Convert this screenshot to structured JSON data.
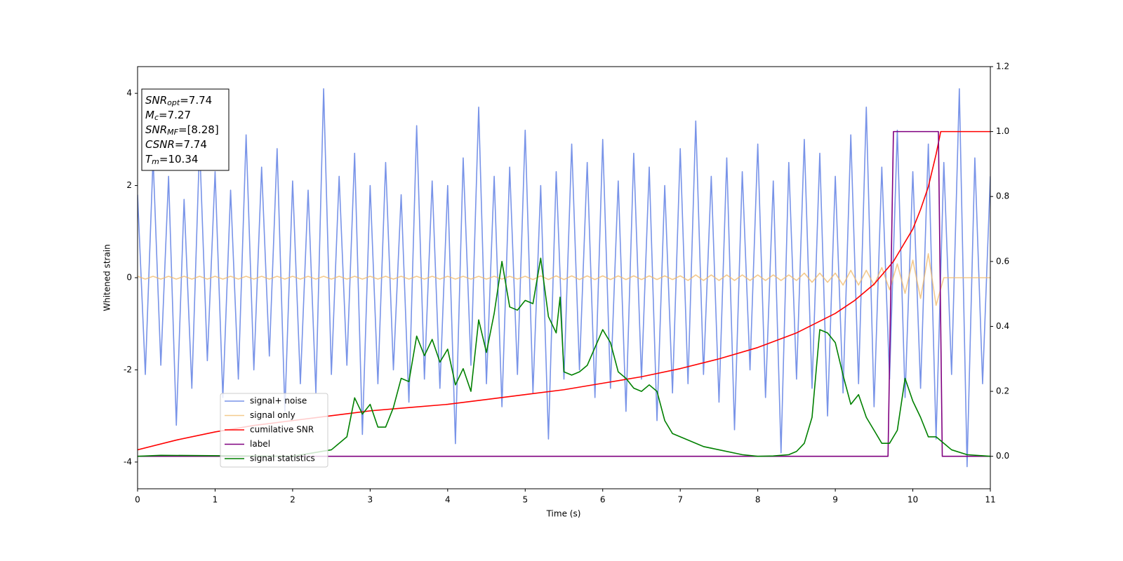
{
  "chart_data": {
    "type": "line",
    "xlabel": "Time (s)",
    "ylabel": "Whitened strain",
    "xlim": [
      0,
      11
    ],
    "xticks": [
      0,
      1,
      2,
      3,
      4,
      5,
      6,
      7,
      8,
      9,
      10,
      11
    ],
    "ylim": [
      -4.58,
      4.58
    ],
    "yticks": [
      -4,
      -2,
      0,
      2,
      4
    ],
    "y2lim": [
      -0.1,
      1.2
    ],
    "y2ticks": [
      {
        "value": 0,
        "label": "0.0"
      },
      0.2,
      0.4,
      0.6,
      0.8,
      {
        "value": 1,
        "label": "1.0"
      },
      1.2
    ],
    "annotations": [
      {
        "main": "SNR",
        "sub": "opt",
        "rest": "=7.74"
      },
      {
        "main": "M",
        "sub": "c",
        "rest": "=7.27"
      },
      {
        "main": "SNR",
        "sub": "MF",
        "rest": "=[8.28]"
      },
      {
        "main": "CSNR",
        "rest": "=7.74"
      },
      {
        "main": "T",
        "sub": "m",
        "rest": "=10.34"
      }
    ],
    "x": [
      0,
      0.1,
      0.2,
      0.3,
      0.4,
      0.5,
      0.6,
      0.7,
      0.8,
      0.9,
      1,
      1.1,
      1.2,
      1.3,
      1.4,
      1.5,
      1.6,
      1.7,
      1.8,
      1.9,
      2,
      2.1,
      2.2,
      2.3,
      2.4,
      2.5,
      2.6,
      2.7,
      2.8,
      2.9,
      3,
      3.1,
      3.2,
      3.3,
      3.4,
      3.5,
      3.6,
      3.7,
      3.8,
      3.9,
      4,
      4.1,
      4.2,
      4.3,
      4.4,
      4.5,
      4.6,
      4.7,
      4.8,
      4.9,
      5,
      5.1,
      5.2,
      5.3,
      5.4,
      5.5,
      5.6,
      5.7,
      5.8,
      5.9,
      6,
      6.1,
      6.2,
      6.3,
      6.4,
      6.5,
      6.6,
      6.7,
      6.8,
      6.9,
      7,
      7.1,
      7.2,
      7.3,
      7.4,
      7.5,
      7.6,
      7.7,
      7.8,
      7.9,
      8,
      8.1,
      8.2,
      8.3,
      8.4,
      8.5,
      8.6,
      8.7,
      8.8,
      8.9,
      9,
      9.1,
      9.2,
      9.3,
      9.4,
      9.5,
      9.6,
      9.7,
      9.8,
      9.9,
      10,
      10.1,
      10.2,
      10.3,
      10.4,
      10.5,
      10.6,
      10.7,
      10.8,
      10.9,
      11
    ],
    "series": [
      {
        "name": "signal+ noise",
        "color": "#7893e8",
        "values": [
          1.8,
          -2.1,
          2.6,
          -1.9,
          2.2,
          -3.2,
          1.7,
          -2.4,
          2.9,
          -1.8,
          2.3,
          -2.6,
          1.9,
          -2.2,
          3.1,
          -2.0,
          2.4,
          -1.7,
          2.8,
          -2.9,
          2.1,
          -2.3,
          1.9,
          -2.5,
          4.1,
          -2.1,
          2.2,
          -1.9,
          2.7,
          -3.4,
          2.0,
          -2.3,
          2.5,
          -2.0,
          1.8,
          -2.7,
          3.3,
          -2.2,
          2.1,
          -2.4,
          2.0,
          -3.6,
          2.6,
          -1.9,
          3.7,
          -2.3,
          2.2,
          -2.8,
          2.4,
          -2.1,
          3.2,
          -2.5,
          2.0,
          -3.5,
          2.3,
          -2.2,
          2.9,
          -2.0,
          2.5,
          -2.6,
          3.0,
          -2.4,
          2.1,
          -2.9,
          2.7,
          -2.2,
          2.4,
          -3.1,
          2.0,
          -2.5,
          2.8,
          -2.3,
          3.4,
          -2.1,
          2.2,
          -2.7,
          2.6,
          -3.3,
          2.3,
          -2.0,
          2.9,
          -2.6,
          2.1,
          -3.8,
          2.5,
          -2.2,
          3.0,
          -2.4,
          2.7,
          -3.0,
          2.2,
          -2.5,
          3.1,
          -2.3,
          3.7,
          -2.8,
          2.4,
          -2.2,
          3.2,
          -2.6,
          2.3,
          -2.4,
          2.9,
          -3.5,
          2.5,
          -2.1,
          4.1,
          -4.1,
          2.6,
          -2.3,
          2.2
        ]
      },
      {
        "name": "signal only",
        "color": "#f0b868",
        "values": [
          0.03,
          -0.03,
          0.03,
          -0.03,
          0.03,
          -0.03,
          0.03,
          -0.03,
          0.03,
          -0.03,
          0.03,
          -0.03,
          0.03,
          -0.03,
          0.03,
          -0.03,
          0.03,
          -0.03,
          0.03,
          -0.03,
          0.03,
          -0.03,
          0.03,
          -0.03,
          0.03,
          -0.03,
          0.03,
          -0.03,
          0.03,
          -0.03,
          0.03,
          -0.03,
          0.03,
          -0.03,
          0.03,
          -0.03,
          0.03,
          -0.03,
          0.03,
          -0.03,
          0.03,
          -0.03,
          0.03,
          -0.03,
          0.03,
          -0.03,
          0.03,
          -0.03,
          0.03,
          -0.03,
          0.03,
          -0.04,
          0.04,
          -0.04,
          0.04,
          -0.04,
          0.04,
          -0.04,
          0.04,
          -0.04,
          0.04,
          -0.04,
          0.04,
          -0.04,
          0.04,
          -0.04,
          0.04,
          -0.04,
          0.04,
          -0.04,
          0.04,
          -0.06,
          0.06,
          -0.06,
          0.06,
          -0.06,
          0.06,
          -0.06,
          0.06,
          -0.06,
          0.06,
          -0.06,
          0.06,
          -0.06,
          0.06,
          -0.06,
          0.1,
          -0.1,
          0.1,
          -0.1,
          0.1,
          -0.16,
          0.16,
          -0.16,
          0.16,
          -0.16,
          0.22,
          -0.26,
          0.3,
          -0.34,
          0.38,
          -0.45,
          0.52,
          -0.6,
          0,
          0,
          0,
          0,
          0,
          0,
          0
        ]
      },
      {
        "name": "cumilative SNR",
        "color": "#ff0000",
        "axis": "y2",
        "x": [
          0,
          0.5,
          1,
          1.5,
          2,
          2.5,
          3,
          3.5,
          4,
          4.5,
          5,
          5.5,
          6,
          6.5,
          7,
          7.5,
          8,
          8.5,
          9,
          9.25,
          9.5,
          9.75,
          10,
          10.1,
          10.2,
          10.3,
          10.36,
          11
        ],
        "values": [
          0.02,
          0.05,
          0.075,
          0.095,
          0.11,
          0.125,
          0.14,
          0.15,
          0.16,
          0.175,
          0.19,
          0.205,
          0.225,
          0.245,
          0.27,
          0.3,
          0.335,
          0.38,
          0.44,
          0.48,
          0.53,
          0.6,
          0.7,
          0.76,
          0.83,
          0.93,
          1,
          1
        ]
      },
      {
        "name": "label",
        "color": "#800080",
        "axis": "y2",
        "x": [
          0,
          9.68,
          9.75,
          10.33,
          10.38,
          11
        ],
        "values": [
          0,
          0,
          1,
          1,
          0,
          0
        ]
      },
      {
        "name": "signal statistics",
        "color": "#008000",
        "axis": "y2",
        "x": [
          0,
          0.3,
          2,
          2.5,
          2.7,
          2.8,
          2.9,
          3,
          3.1,
          3.2,
          3.3,
          3.4,
          3.5,
          3.6,
          3.7,
          3.8,
          3.9,
          4,
          4.1,
          4.2,
          4.3,
          4.4,
          4.5,
          4.6,
          4.7,
          4.8,
          4.9,
          5,
          5.1,
          5.2,
          5.3,
          5.4,
          5.45,
          5.5,
          5.6,
          5.7,
          5.8,
          6,
          6.1,
          6.2,
          6.3,
          6.4,
          6.5,
          6.6,
          6.7,
          6.8,
          6.9,
          7,
          7.1,
          7.3,
          7.5,
          7.8,
          8,
          8.2,
          8.4,
          8.5,
          8.6,
          8.7,
          8.8,
          8.9,
          9,
          9.1,
          9.2,
          9.3,
          9.4,
          9.5,
          9.6,
          9.7,
          9.8,
          9.9,
          10,
          10.1,
          10.2,
          10.3,
          10.5,
          10.7,
          11
        ],
        "values": [
          0,
          0.003,
          0,
          0.02,
          0.06,
          0.18,
          0.13,
          0.16,
          0.09,
          0.09,
          0.15,
          0.24,
          0.23,
          0.37,
          0.31,
          0.36,
          0.29,
          0.33,
          0.22,
          0.27,
          0.2,
          0.42,
          0.32,
          0.44,
          0.6,
          0.46,
          0.45,
          0.48,
          0.47,
          0.61,
          0.43,
          0.38,
          0.49,
          0.26,
          0.25,
          0.26,
          0.28,
          0.39,
          0.35,
          0.26,
          0.24,
          0.21,
          0.2,
          0.22,
          0.2,
          0.11,
          0.07,
          0.06,
          0.05,
          0.03,
          0.02,
          0.005,
          0,
          0.001,
          0.005,
          0.015,
          0.04,
          0.12,
          0.39,
          0.38,
          0.35,
          0.25,
          0.16,
          0.19,
          0.12,
          0.08,
          0.04,
          0.04,
          0.08,
          0.24,
          0.17,
          0.12,
          0.06,
          0.06,
          0.02,
          0.005,
          0
        ]
      }
    ]
  }
}
